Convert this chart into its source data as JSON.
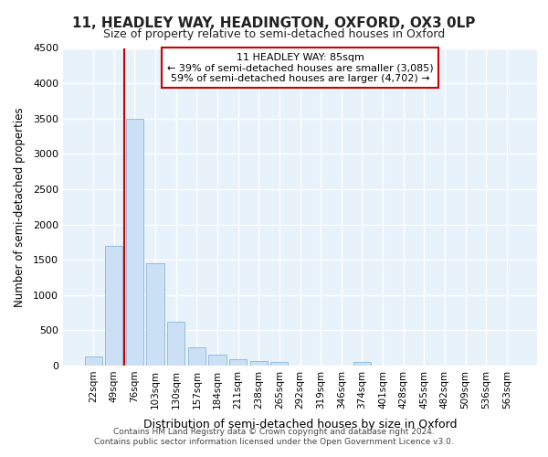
{
  "title": "11, HEADLEY WAY, HEADINGTON, OXFORD, OX3 0LP",
  "subtitle": "Size of property relative to semi-detached houses in Oxford",
  "xlabel": "Distribution of semi-detached houses by size in Oxford",
  "ylabel": "Number of semi-detached properties",
  "footer_line1": "Contains HM Land Registry data © Crown copyright and database right 2024.",
  "footer_line2": "Contains public sector information licensed under the Open Government Licence v3.0.",
  "bar_labels": [
    "22sqm",
    "49sqm",
    "76sqm",
    "103sqm",
    "130sqm",
    "157sqm",
    "184sqm",
    "211sqm",
    "238sqm",
    "265sqm",
    "292sqm",
    "319sqm",
    "346sqm",
    "374sqm",
    "401sqm",
    "428sqm",
    "455sqm",
    "482sqm",
    "509sqm",
    "536sqm",
    "563sqm"
  ],
  "bar_values": [
    130,
    1700,
    3500,
    1450,
    625,
    265,
    160,
    95,
    65,
    50,
    0,
    0,
    0,
    50,
    0,
    0,
    0,
    0,
    0,
    0,
    0
  ],
  "bar_color": "#cce0f5",
  "bar_edge_color": "#8ab8d8",
  "background_color": "#e8f2fb",
  "grid_color": "#ffffff",
  "annotation_title": "11 HEADLEY WAY: 85sqm",
  "annotation_line1": "← 39% of semi-detached houses are smaller (3,085)",
  "annotation_line2": "59% of semi-detached houses are larger (4,702) →",
  "annotation_box_color": "#ffffff",
  "annotation_box_edge": "#cc0000",
  "red_line_color": "#cc0000",
  "red_line_x": 1.5,
  "ylim": [
    0,
    4500
  ],
  "yticks": [
    0,
    500,
    1000,
    1500,
    2000,
    2500,
    3000,
    3500,
    4000,
    4500
  ]
}
